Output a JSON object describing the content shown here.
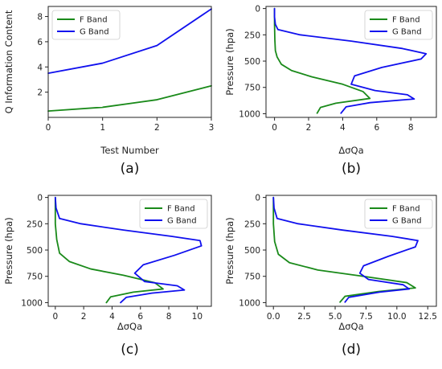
{
  "chart_data": [
    {
      "type": "line",
      "xlabel": "Test Number",
      "ylabel": "Q Information Content",
      "caption": "(a)",
      "xlim": [
        0,
        3
      ],
      "ylim": [
        0,
        8.8
      ],
      "xticks": [
        0,
        1,
        2,
        3
      ],
      "xtick_labels": [
        "0",
        "1",
        "2",
        "3"
      ],
      "yticks": [
        2,
        4,
        6,
        8
      ],
      "ytick_labels": [
        "2",
        "4",
        "6",
        "8"
      ],
      "invert_y": false,
      "legend_position": "top-left",
      "grid": false,
      "series": [
        {
          "name": "F Band",
          "color": "#1a8a1a",
          "x": [
            0,
            1,
            2,
            3
          ],
          "y": [
            0.5,
            0.8,
            1.4,
            2.5
          ]
        },
        {
          "name": "G Band",
          "color": "#1010ee",
          "x": [
            0,
            1,
            2,
            3
          ],
          "y": [
            3.5,
            4.3,
            5.7,
            8.6
          ]
        }
      ]
    },
    {
      "type": "line",
      "xlabel": "ΔσQa",
      "ylabel": "Pressure (hpa)",
      "caption": "(b)",
      "xlim": [
        -0.5,
        9.5
      ],
      "ylim": [
        1035,
        -20
      ],
      "xticks": [
        0,
        2,
        4,
        6,
        8
      ],
      "xtick_labels": [
        "0",
        "2",
        "4",
        "6",
        "8"
      ],
      "yticks": [
        0,
        250,
        500,
        750,
        1000
      ],
      "ytick_labels": [
        "0",
        "250",
        "500",
        "750",
        "1000"
      ],
      "invert_y": true,
      "legend_position": "top-right",
      "grid": false,
      "series": [
        {
          "name": "F Band",
          "color": "#1a8a1a",
          "x": [
            2.5,
            2.7,
            3.6,
            5.6,
            5.2,
            4.0,
            2.2,
            1.0,
            0.4,
            0.15,
            0.05,
            0.02,
            0.0,
            0.0
          ],
          "y": [
            995,
            940,
            900,
            855,
            790,
            720,
            650,
            590,
            530,
            460,
            400,
            300,
            150,
            0
          ]
        },
        {
          "name": "G Band",
          "color": "#1010ee",
          "x": [
            3.9,
            4.2,
            5.6,
            8.2,
            7.8,
            5.9,
            4.5,
            4.7,
            6.3,
            8.6,
            8.9,
            7.5,
            4.5,
            1.5,
            0.2,
            0.05,
            0.0,
            0.0
          ],
          "y": [
            995,
            935,
            895,
            860,
            820,
            780,
            720,
            640,
            560,
            480,
            430,
            380,
            310,
            250,
            200,
            150,
            80,
            0
          ]
        }
      ]
    },
    {
      "type": "line",
      "xlabel": "ΔσQa",
      "ylabel": "Pressure (hpa)",
      "caption": "(c)",
      "xlim": [
        -0.5,
        11
      ],
      "ylim": [
        1035,
        -20
      ],
      "xticks": [
        0,
        2,
        4,
        6,
        8,
        10
      ],
      "xtick_labels": [
        "0",
        "2",
        "4",
        "6",
        "8",
        "10"
      ],
      "yticks": [
        0,
        250,
        500,
        750,
        1000
      ],
      "ytick_labels": [
        "0",
        "250",
        "500",
        "750",
        "1000"
      ],
      "invert_y": true,
      "legend_position": "top-right",
      "grid": false,
      "series": [
        {
          "name": "F Band",
          "color": "#1a8a1a",
          "x": [
            3.6,
            3.9,
            5.5,
            7.6,
            7.0,
            4.8,
            2.5,
            1.0,
            0.3,
            0.1,
            0.0,
            0.0
          ],
          "y": [
            1000,
            945,
            900,
            870,
            810,
            740,
            680,
            610,
            530,
            400,
            250,
            0
          ]
        },
        {
          "name": "G Band",
          "color": "#1010ee",
          "x": [
            4.6,
            5.0,
            6.8,
            9.1,
            8.6,
            6.3,
            5.6,
            6.2,
            8.4,
            10.3,
            10.2,
            8.2,
            4.8,
            1.8,
            0.3,
            0.05,
            0.0
          ],
          "y": [
            1000,
            950,
            910,
            880,
            840,
            800,
            720,
            640,
            550,
            460,
            410,
            370,
            310,
            250,
            200,
            100,
            0
          ]
        }
      ]
    },
    {
      "type": "line",
      "xlabel": "ΔσQa",
      "ylabel": "Pressure (hpa)",
      "caption": "(d)",
      "xlim": [
        -0.6,
        13.2
      ],
      "ylim": [
        1035,
        -20
      ],
      "xticks": [
        0,
        2.5,
        5,
        7.5,
        10,
        12.5
      ],
      "xtick_labels": [
        "0.0",
        "2.5",
        "5.0",
        "7.5",
        "10.0",
        "12.5"
      ],
      "yticks": [
        0,
        250,
        500,
        750,
        1000
      ],
      "ytick_labels": [
        "0",
        "250",
        "500",
        "750",
        "1000"
      ],
      "invert_y": true,
      "legend_position": "top-right",
      "grid": false,
      "series": [
        {
          "name": "F Band",
          "color": "#1a8a1a",
          "x": [
            5.4,
            5.8,
            8.5,
            11.5,
            10.8,
            7.3,
            3.6,
            1.3,
            0.4,
            0.1,
            0.0,
            0.0
          ],
          "y": [
            995,
            940,
            895,
            860,
            810,
            750,
            690,
            620,
            540,
            420,
            250,
            0
          ]
        },
        {
          "name": "G Band",
          "color": "#1010ee",
          "x": [
            5.8,
            6.1,
            8.6,
            11.0,
            10.5,
            7.7,
            7.0,
            7.3,
            9.3,
            11.5,
            11.7,
            9.6,
            5.6,
            2.0,
            0.3,
            0.05,
            0.0
          ],
          "y": [
            995,
            950,
            900,
            870,
            830,
            780,
            720,
            650,
            560,
            470,
            410,
            370,
            310,
            250,
            200,
            100,
            0
          ]
        }
      ]
    }
  ]
}
